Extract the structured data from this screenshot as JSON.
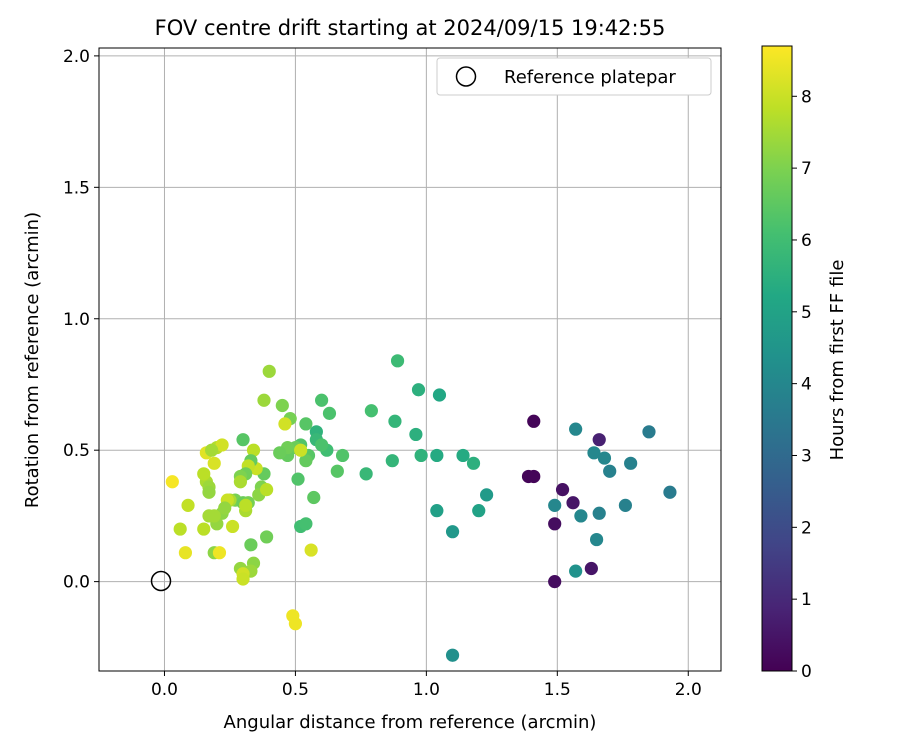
{
  "chart_data": {
    "type": "scatter",
    "title": "FOV centre drift starting at 2024/09/15 19:42:55",
    "xlabel": "Angular distance from reference (arcmin)",
    "ylabel": "Rotation from reference (arcmin)",
    "xlim": [
      -0.25,
      2.125
    ],
    "ylim": [
      -0.34,
      2.03
    ],
    "xticks": [
      0.0,
      0.5,
      1.0,
      1.5,
      2.0
    ],
    "yticks": [
      0.0,
      0.5,
      1.0,
      1.5,
      2.0
    ],
    "xtick_labels": [
      "0.0",
      "0.5",
      "1.0",
      "1.5",
      "2.0"
    ],
    "ytick_labels": [
      "0.0",
      "0.5",
      "1.0",
      "1.5",
      "2.0"
    ],
    "grid": true,
    "colormap": "viridis",
    "colorbar": {
      "label": "Hours from first FF file",
      "range": [
        0,
        8.7
      ],
      "ticks": [
        0,
        1,
        2,
        3,
        4,
        5,
        6,
        7,
        8
      ],
      "tick_labels": [
        "0",
        "1",
        "2",
        "3",
        "4",
        "5",
        "6",
        "7",
        "8"
      ]
    },
    "reference": {
      "x": 0.0,
      "y": 0.0,
      "label": "Reference platepar"
    },
    "legend": {
      "placement": "top-right",
      "entries": [
        "Reference platepar"
      ]
    },
    "points": [
      {
        "x": 1.41,
        "y": 0.61,
        "h": 0.1
      },
      {
        "x": 1.39,
        "y": 0.4,
        "h": 0.1
      },
      {
        "x": 1.41,
        "y": 0.4,
        "h": 0.1
      },
      {
        "x": 1.49,
        "y": 0.22,
        "h": 0.3
      },
      {
        "x": 1.49,
        "y": 0.0,
        "h": 0.3
      },
      {
        "x": 1.52,
        "y": 0.35,
        "h": 0.4
      },
      {
        "x": 1.56,
        "y": 0.3,
        "h": 0.5
      },
      {
        "x": 1.63,
        "y": 0.05,
        "h": 0.5
      },
      {
        "x": 1.66,
        "y": 0.54,
        "h": 0.8
      },
      {
        "x": 1.57,
        "y": 0.58,
        "h": 4.0
      },
      {
        "x": 1.49,
        "y": 0.29,
        "h": 4.0
      },
      {
        "x": 1.59,
        "y": 0.25,
        "h": 4.0
      },
      {
        "x": 1.64,
        "y": 0.49,
        "h": 4.0
      },
      {
        "x": 1.66,
        "y": 0.26,
        "h": 3.8
      },
      {
        "x": 1.57,
        "y": 0.04,
        "h": 4.4
      },
      {
        "x": 1.65,
        "y": 0.16,
        "h": 4.0
      },
      {
        "x": 1.68,
        "y": 0.47,
        "h": 4.0
      },
      {
        "x": 1.7,
        "y": 0.42,
        "h": 3.8
      },
      {
        "x": 1.76,
        "y": 0.29,
        "h": 3.8
      },
      {
        "x": 1.78,
        "y": 0.45,
        "h": 3.8
      },
      {
        "x": 1.85,
        "y": 0.57,
        "h": 3.6
      },
      {
        "x": 1.93,
        "y": 0.34,
        "h": 3.6
      },
      {
        "x": 1.1,
        "y": -0.28,
        "h": 4.3
      },
      {
        "x": 1.1,
        "y": 0.19,
        "h": 4.6
      },
      {
        "x": 1.04,
        "y": 0.27,
        "h": 4.9
      },
      {
        "x": 1.23,
        "y": 0.33,
        "h": 4.7
      },
      {
        "x": 1.2,
        "y": 0.27,
        "h": 5.0
      },
      {
        "x": 1.14,
        "y": 0.48,
        "h": 5.3
      },
      {
        "x": 1.18,
        "y": 0.45,
        "h": 5.5
      },
      {
        "x": 1.04,
        "y": 0.48,
        "h": 5.3
      },
      {
        "x": 0.98,
        "y": 0.48,
        "h": 5.6
      },
      {
        "x": 0.96,
        "y": 0.56,
        "h": 5.5
      },
      {
        "x": 1.05,
        "y": 0.71,
        "h": 5.2
      },
      {
        "x": 0.97,
        "y": 0.73,
        "h": 5.5
      },
      {
        "x": 0.88,
        "y": 0.61,
        "h": 5.7
      },
      {
        "x": 0.89,
        "y": 0.84,
        "h": 5.9
      },
      {
        "x": 0.87,
        "y": 0.46,
        "h": 5.7
      },
      {
        "x": 0.77,
        "y": 0.41,
        "h": 5.8
      },
      {
        "x": 0.79,
        "y": 0.65,
        "h": 6.1
      },
      {
        "x": 0.68,
        "y": 0.48,
        "h": 6.3
      },
      {
        "x": 0.66,
        "y": 0.42,
        "h": 6.4
      },
      {
        "x": 0.63,
        "y": 0.64,
        "h": 6.2
      },
      {
        "x": 0.6,
        "y": 0.69,
        "h": 6.2
      },
      {
        "x": 0.62,
        "y": 0.5,
        "h": 6.0
      },
      {
        "x": 0.58,
        "y": 0.57,
        "h": 5.6
      },
      {
        "x": 0.58,
        "y": 0.54,
        "h": 5.8
      },
      {
        "x": 0.6,
        "y": 0.52,
        "h": 6.2
      },
      {
        "x": 0.54,
        "y": 0.6,
        "h": 6.4
      },
      {
        "x": 0.57,
        "y": 0.32,
        "h": 6.5
      },
      {
        "x": 0.52,
        "y": 0.21,
        "h": 6.0
      },
      {
        "x": 0.54,
        "y": 0.22,
        "h": 6.1
      },
      {
        "x": 0.51,
        "y": 0.39,
        "h": 6.3
      },
      {
        "x": 0.52,
        "y": 0.52,
        "h": 6.3
      },
      {
        "x": 0.55,
        "y": 0.48,
        "h": 6.4
      },
      {
        "x": 0.54,
        "y": 0.46,
        "h": 6.6
      },
      {
        "x": 0.5,
        "y": 0.51,
        "h": 6.7
      },
      {
        "x": 0.47,
        "y": 0.48,
        "h": 6.6
      },
      {
        "x": 0.48,
        "y": 0.62,
        "h": 6.9
      },
      {
        "x": 0.45,
        "y": 0.67,
        "h": 7.0
      },
      {
        "x": 0.47,
        "y": 0.51,
        "h": 6.8
      },
      {
        "x": 0.44,
        "y": 0.49,
        "h": 6.7
      },
      {
        "x": 0.56,
        "y": 0.12,
        "h": 8.2
      },
      {
        "x": 0.52,
        "y": 0.5,
        "h": 8.0
      },
      {
        "x": 0.46,
        "y": 0.6,
        "h": 8.1
      },
      {
        "x": 0.49,
        "y": -0.13,
        "h": 8.5
      },
      {
        "x": 0.5,
        "y": -0.16,
        "h": 8.5
      },
      {
        "x": 0.4,
        "y": 0.8,
        "h": 7.4
      },
      {
        "x": 0.38,
        "y": 0.69,
        "h": 7.4
      },
      {
        "x": 0.38,
        "y": 0.41,
        "h": 6.6
      },
      {
        "x": 0.37,
        "y": 0.36,
        "h": 7.0
      },
      {
        "x": 0.36,
        "y": 0.33,
        "h": 7.2
      },
      {
        "x": 0.39,
        "y": 0.35,
        "h": 7.8
      },
      {
        "x": 0.35,
        "y": 0.43,
        "h": 8.0
      },
      {
        "x": 0.34,
        "y": 0.5,
        "h": 7.8
      },
      {
        "x": 0.33,
        "y": 0.46,
        "h": 6.6
      },
      {
        "x": 0.32,
        "y": 0.44,
        "h": 7.9
      },
      {
        "x": 0.3,
        "y": 0.54,
        "h": 6.4
      },
      {
        "x": 0.31,
        "y": 0.41,
        "h": 6.8
      },
      {
        "x": 0.29,
        "y": 0.4,
        "h": 7.0
      },
      {
        "x": 0.29,
        "y": 0.38,
        "h": 7.6
      },
      {
        "x": 0.27,
        "y": 0.31,
        "h": 6.9
      },
      {
        "x": 0.3,
        "y": 0.3,
        "h": 6.7
      },
      {
        "x": 0.32,
        "y": 0.3,
        "h": 6.9
      },
      {
        "x": 0.31,
        "y": 0.27,
        "h": 7.6
      },
      {
        "x": 0.31,
        "y": 0.29,
        "h": 7.8
      },
      {
        "x": 0.25,
        "y": 0.31,
        "h": 7.6
      },
      {
        "x": 0.24,
        "y": 0.31,
        "h": 8.0
      },
      {
        "x": 0.22,
        "y": 0.26,
        "h": 7.2
      },
      {
        "x": 0.23,
        "y": 0.28,
        "h": 7.3
      },
      {
        "x": 0.26,
        "y": 0.21,
        "h": 8.0
      },
      {
        "x": 0.2,
        "y": 0.22,
        "h": 7.3
      },
      {
        "x": 0.19,
        "y": 0.25,
        "h": 7.5
      },
      {
        "x": 0.17,
        "y": 0.25,
        "h": 7.5
      },
      {
        "x": 0.15,
        "y": 0.2,
        "h": 7.8
      },
      {
        "x": 0.16,
        "y": 0.38,
        "h": 7.6
      },
      {
        "x": 0.17,
        "y": 0.36,
        "h": 7.4
      },
      {
        "x": 0.17,
        "y": 0.34,
        "h": 7.3
      },
      {
        "x": 0.15,
        "y": 0.41,
        "h": 7.8
      },
      {
        "x": 0.16,
        "y": 0.49,
        "h": 8.3
      },
      {
        "x": 0.19,
        "y": 0.45,
        "h": 8.2
      },
      {
        "x": 0.2,
        "y": 0.51,
        "h": 7.7
      },
      {
        "x": 0.22,
        "y": 0.52,
        "h": 8.1
      },
      {
        "x": 0.18,
        "y": 0.5,
        "h": 7.5
      },
      {
        "x": 0.09,
        "y": 0.29,
        "h": 7.9
      },
      {
        "x": 0.06,
        "y": 0.2,
        "h": 7.8
      },
      {
        "x": 0.03,
        "y": 0.38,
        "h": 8.6
      },
      {
        "x": 0.08,
        "y": 0.11,
        "h": 8.4
      },
      {
        "x": 0.19,
        "y": 0.11,
        "h": 7.2
      },
      {
        "x": 0.21,
        "y": 0.11,
        "h": 8.5
      },
      {
        "x": 0.33,
        "y": 0.14,
        "h": 6.7
      },
      {
        "x": 0.34,
        "y": 0.07,
        "h": 7.2
      },
      {
        "x": 0.33,
        "y": 0.04,
        "h": 7.4
      },
      {
        "x": 0.29,
        "y": 0.05,
        "h": 7.3
      },
      {
        "x": 0.3,
        "y": 0.03,
        "h": 8.1
      },
      {
        "x": 0.3,
        "y": 0.01,
        "h": 8.0
      },
      {
        "x": 0.39,
        "y": 0.17,
        "h": 6.8
      }
    ]
  }
}
